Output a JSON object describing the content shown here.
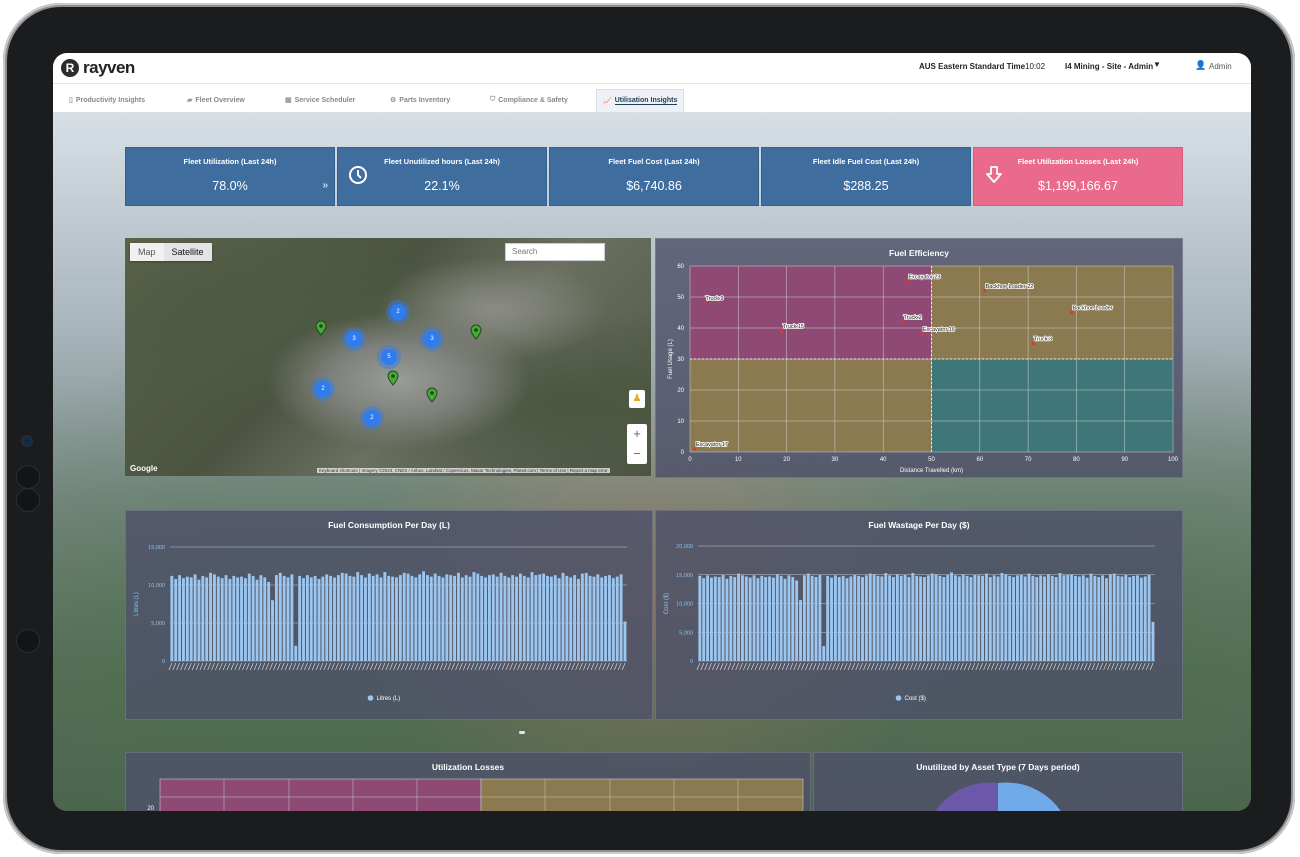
{
  "header": {
    "logo_text": "rayven",
    "logo_letter": "R",
    "timezone": "AUS Eastern Standard Time",
    "time": "10:02",
    "site": "I4 Mining - Site - Admin",
    "user": "Admin"
  },
  "tabs": [
    {
      "label": "Productivity Insights",
      "icon": "doc-icon"
    },
    {
      "label": "Fleet Overview",
      "icon": "truck-icon"
    },
    {
      "label": "Service Scheduler",
      "icon": "calendar-icon"
    },
    {
      "label": "Parts Inventory",
      "icon": "gears-icon"
    },
    {
      "label": "Compliance & Safety",
      "icon": "shield-icon"
    },
    {
      "label": "Utilisation Insights",
      "icon": "chart-icon",
      "active": true
    }
  ],
  "kpis": [
    {
      "title": "Fleet Utilization (Last 24h)",
      "value": "78.0%",
      "color": "#3f6d9e"
    },
    {
      "title": "Fleet Unutilized hours (Last 24h)",
      "value": "22.1%",
      "color": "#3f6d9e"
    },
    {
      "title": "Fleet Fuel Cost (Last 24h)",
      "value": "$6,740.86",
      "color": "#3f6d9e"
    },
    {
      "title": "Fleet Idle Fuel Cost (Last 24h)",
      "value": "$288.25",
      "color": "#3f6d9e"
    },
    {
      "title": "Fleet Utilization Losses (Last 24h)",
      "value": "$1,199,166.67",
      "color": "#ea6a8e"
    }
  ],
  "map": {
    "mode_map": "Map",
    "mode_satellite": "Satellite",
    "search_placeholder": "Search",
    "google": "Google",
    "attribution": "Keyboard shortcuts | Imagery ©2023, CNES / Airbus, Landsat / Copernicus, Maxar Technologies, Planet.com | Terms of Use | Report a map error",
    "clusters": [
      "2",
      "3",
      "3",
      "5",
      "2",
      "2"
    ]
  },
  "chart_data": [
    {
      "type": "scatter",
      "title": "Fuel Efficiency",
      "xlabel": "Distance Travelled (km)",
      "ylabel": "Fuel Usage (L)",
      "xlim": [
        0,
        100
      ],
      "ylim": [
        0,
        60
      ],
      "xticks": [
        "0",
        "10",
        "20",
        "30",
        "40",
        "50",
        "60",
        "70",
        "80",
        "90",
        "100"
      ],
      "yticks": [
        "0",
        "10",
        "20",
        "30",
        "40",
        "50",
        "60"
      ],
      "quadrant_colors": {
        "top_left": "#8e4a74",
        "top_right": "#8b7a4f",
        "bottom_left": "#8b7a4f",
        "bottom_right": "#3f767a"
      },
      "points": [
        {
          "label": "Truck 9",
          "x": 3,
          "y": 48
        },
        {
          "label": "Truck 15",
          "x": 19,
          "y": 39
        },
        {
          "label": "Excavator 23",
          "x": 45,
          "y": 55
        },
        {
          "label": "Truck 2",
          "x": 44,
          "y": 42
        },
        {
          "label": "Excavator 16",
          "x": 48,
          "y": 38
        },
        {
          "label": "Backhoe Loader 22",
          "x": 61,
          "y": 52
        },
        {
          "label": "Backhoe Loader",
          "x": 79,
          "y": 45
        },
        {
          "label": "Truck 3",
          "x": 71,
          "y": 35
        },
        {
          "label": "Excavator 17",
          "x": 1,
          "y": 1
        }
      ]
    },
    {
      "type": "bar",
      "title": "Fuel Consumption Per Day (L)",
      "ylabel": "Litres (L)",
      "ylim": [
        0,
        15000
      ],
      "yticks": [
        "0",
        "5,000",
        "10,000",
        "15,000"
      ],
      "series": [
        {
          "name": "Litres (L)",
          "color": "#9cc6ef",
          "values": [
            11200,
            10800,
            11300,
            10900,
            11100,
            11000,
            11400,
            10700,
            11200,
            11000,
            11600,
            11400,
            11100,
            10900,
            11300,
            10800,
            11200,
            11000,
            11100,
            10900,
            11500,
            11200,
            10700,
            11300,
            11000,
            10400,
            8000,
            11300,
            11600,
            11200,
            11000,
            11400,
            2000,
            11200,
            10900,
            11300,
            11000,
            11200,
            10800,
            11100,
            11400,
            11200,
            11000,
            11300,
            11600,
            11500,
            11200,
            11100,
            11700,
            11300,
            11000,
            11500,
            11200,
            11400,
            11000,
            11700,
            11200,
            11100,
            11000,
            11300,
            11600,
            11500,
            11200,
            11000,
            11400,
            11800,
            11300,
            11100,
            11500,
            11200,
            11000,
            11400,
            11300,
            11200,
            11600,
            11000,
            11300,
            11100,
            11700,
            11500,
            11200,
            11000,
            11300,
            11400,
            11100,
            11600,
            11200,
            11000,
            11300,
            11100,
            11500,
            11200,
            11000,
            11700,
            11300,
            11400,
            11500,
            11200,
            11100,
            11300,
            10900,
            11600,
            11200,
            11000,
            11300,
            10800,
            11500,
            11600,
            11200,
            11100,
            11400,
            11000,
            11200,
            11300,
            10900,
            11100,
            11400,
            5200
          ]
        }
      ]
    },
    {
      "type": "bar",
      "title": "Fuel Wastage Per Day ($)",
      "ylabel": "Cost ($)",
      "ylim": [
        0,
        20000
      ],
      "yticks": [
        "0",
        "5,000",
        "10,000",
        "15,000",
        "20,000"
      ],
      "series": [
        {
          "name": "Cost ($)",
          "color": "#9cc6ef",
          "values": [
            14800,
            14400,
            14900,
            14500,
            14700,
            14600,
            15000,
            14300,
            14800,
            14600,
            15200,
            14900,
            14700,
            14500,
            14900,
            14400,
            14800,
            14600,
            14700,
            14500,
            15100,
            14800,
            14300,
            14900,
            14600,
            14000,
            10600,
            14900,
            15200,
            14800,
            14600,
            15000,
            2600,
            14800,
            14500,
            14900,
            14600,
            14800,
            14400,
            14700,
            15000,
            14800,
            14600,
            14900,
            15200,
            15100,
            14800,
            14700,
            15300,
            14900,
            14600,
            15100,
            14800,
            15000,
            14600,
            15300,
            14800,
            14700,
            14600,
            14900,
            15200,
            15100,
            14800,
            14600,
            15000,
            15400,
            14900,
            14700,
            15100,
            14800,
            14600,
            15000,
            14900,
            14800,
            15200,
            14600,
            14900,
            14700,
            15300,
            15100,
            14800,
            14600,
            14900,
            15000,
            14700,
            15200,
            14800,
            14600,
            14900,
            14700,
            15100,
            14800,
            14600,
            15300,
            14900,
            15000,
            15100,
            14800,
            14700,
            14900,
            14500,
            15200,
            14800,
            14600,
            14900,
            14400,
            15100,
            15200,
            14800,
            14700,
            15000,
            14600,
            14800,
            14900,
            14500,
            14700,
            15000,
            6800
          ]
        }
      ]
    },
    {
      "type": "bar",
      "title": "Utilization Losses",
      "yticks": [
        "20"
      ],
      "series": []
    },
    {
      "type": "pie",
      "title": "Unutilized by Asset Type (7 Days period)",
      "series": []
    }
  ]
}
